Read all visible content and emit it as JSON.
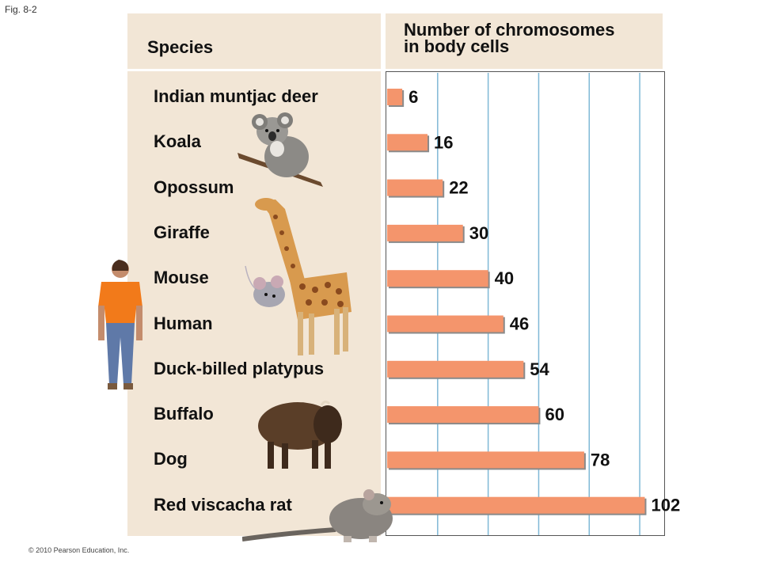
{
  "figure_label": "Fig. 8-2",
  "copyright": "© 2010 Pearson Education, Inc.",
  "colors": {
    "bar": "#f4956c",
    "bar_shadow": "#8a8a8a",
    "gridline": "#7fb8d6",
    "panel": "#f2e6d6"
  },
  "icons": [
    "koala-picture",
    "giraffe-picture",
    "mouse-picture",
    "human-picture",
    "buffalo-picture",
    "rat-picture"
  ],
  "chart_data": {
    "type": "bar",
    "orientation": "horizontal",
    "category_header": "Species",
    "value_header_line1": "Number of chromosomes",
    "value_header_line2": "in body cells",
    "categories": [
      "Indian muntjac deer",
      "Koala",
      "Opossum",
      "Giraffe",
      "Mouse",
      "Human",
      "Duck-billed platypus",
      "Buffalo",
      "Dog",
      "Red viscacha rat"
    ],
    "values": [
      6,
      16,
      22,
      30,
      40,
      46,
      54,
      60,
      78,
      102
    ],
    "xlim": [
      0,
      110
    ],
    "gridlines": [
      20,
      40,
      60,
      80,
      100
    ],
    "grid": true
  }
}
